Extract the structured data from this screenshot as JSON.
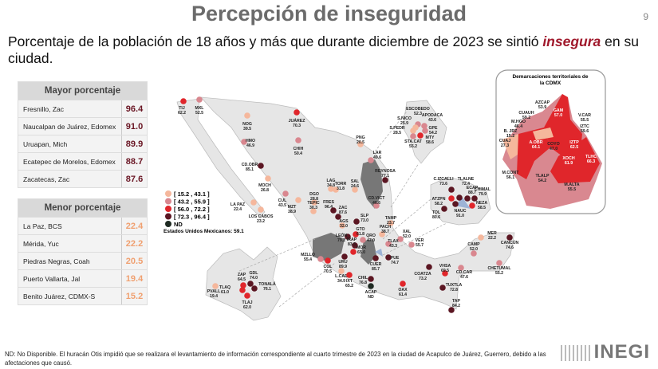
{
  "title": "Percepción de inseguridad",
  "page_number": "9",
  "subtitle": {
    "before": "Porcentaje de la población de 18 años y más que durante diciembre de 2023 se sintió ",
    "emphasis": "insegura",
    "after": " en su ciudad."
  },
  "mayor": {
    "title": "Mayor porcentaje",
    "rows": [
      {
        "name": "Fresnillo, Zac",
        "value": "96.4"
      },
      {
        "name": "Naucalpan de Juárez, Edomex",
        "value": "91.0"
      },
      {
        "name": "Uruapan, Mich",
        "value": "89.9"
      },
      {
        "name": "Ecatepec de Morelos, Edomex",
        "value": "88.7"
      },
      {
        "name": "Zacatecas, Zac",
        "value": "87.6"
      }
    ]
  },
  "menor": {
    "title": "Menor porcentaje",
    "rows": [
      {
        "name": "La Paz, BCS",
        "value": "22.4"
      },
      {
        "name": "Mérida, Yuc",
        "value": "22.2"
      },
      {
        "name": "Piedras Negras, Coah",
        "value": "20.5"
      },
      {
        "name": "Puerto Vallarta, Jal",
        "value": "19.4"
      },
      {
        "name": "Benito Juárez, CDMX-S",
        "value": "15.2"
      }
    ]
  },
  "legend": [
    {
      "label": "[ 15.2 , 43.1 ]",
      "color": "#f5b79c"
    },
    {
      "label": "[ 43.2 , 55.9 ]",
      "color": "#d9878f"
    },
    {
      "label": "[ 56.0 , 72.2 ]",
      "color": "#e0262b"
    },
    {
      "label": "[ 72.3 , 96.4 ]",
      "color": "#5b1622"
    },
    {
      "label": "ND",
      "color": "#1f2a22"
    }
  ],
  "national": "Estados Unidos Mexicanos:  59.1",
  "cities": [
    {
      "code": "TIJ",
      "value": "62.2",
      "c": 2
    },
    {
      "code": "MXL",
      "value": "52.5",
      "c": 1
    },
    {
      "code": "NOG",
      "value": "39.5",
      "c": 0
    },
    {
      "code": "JUÁREZ",
      "value": "70.3",
      "c": 2
    },
    {
      "code": "HMO",
      "value": "46.9",
      "c": 1
    },
    {
      "code": "CHIH",
      "value": "50.4",
      "c": 1
    },
    {
      "code": "CD.OBR",
      "value": "85.1",
      "c": 3
    },
    {
      "code": "MOCH",
      "value": "26.8",
      "c": 0
    },
    {
      "code": "CUL",
      "value": "43.5",
      "c": 1
    },
    {
      "code": "LA PAZ",
      "value": "22.4",
      "c": 0
    },
    {
      "code": "LOS CABOS",
      "value": "23.2",
      "c": 0
    },
    {
      "code": "MZT",
      "value": "38.9",
      "c": 0
    },
    {
      "code": "DGO",
      "value": "28.8",
      "c": 0
    },
    {
      "code": "LAG",
      "value": "34.8",
      "c": 0
    },
    {
      "code": "TORR",
      "value": "31.8",
      "c": 0
    },
    {
      "code": "SAL",
      "value": "24.6",
      "c": 0
    },
    {
      "code": "PNG",
      "value": "20.5",
      "c": 0
    },
    {
      "code": "LAR",
      "value": "49.6",
      "c": 1
    },
    {
      "code": "REYNOSA",
      "value": "77.1",
      "c": 3
    },
    {
      "code": "TEPIC",
      "value": "30.3",
      "c": 0
    },
    {
      "code": "FRES",
      "value": "96.4",
      "c": 3
    },
    {
      "code": "ZAC",
      "value": "87.6",
      "c": 3
    },
    {
      "code": "AGS",
      "value": "32.0",
      "c": 0
    },
    {
      "code": "SLP",
      "value": "73.0",
      "c": 3
    },
    {
      "code": "CD.VICT",
      "value": "46.6",
      "c": 1
    },
    {
      "code": "TAMP",
      "value": "23.7",
      "c": 0
    },
    {
      "code": "LEÓN",
      "value": "79.2",
      "c": 3
    },
    {
      "code": "GTO",
      "value": "61.8",
      "c": 2
    },
    {
      "code": "QRO",
      "value": "47.0",
      "c": 1
    },
    {
      "code": "IRAP",
      "value": "83.5",
      "c": 3
    },
    {
      "code": "PACH",
      "value": "38.7",
      "c": 0
    },
    {
      "code": "XAL",
      "value": "52.0",
      "c": 1
    },
    {
      "code": "MOR",
      "value": "65.0",
      "c": 2
    },
    {
      "code": "URU",
      "value": "89.9",
      "c": 3
    },
    {
      "code": "TLAX",
      "value": "43.3",
      "c": 1
    },
    {
      "code": "VER",
      "value": "55.7",
      "c": 1
    },
    {
      "code": "MZLLO",
      "value": "55.4",
      "c": 1
    },
    {
      "code": "COL",
      "value": "70.5",
      "c": 2
    },
    {
      "code": "CUER",
      "value": "85.7",
      "c": 3
    },
    {
      "code": "PUE",
      "value": "74.7",
      "c": 3
    },
    {
      "code": "L.CAR",
      "value": "34.9",
      "c": 0
    },
    {
      "code": "IXT",
      "value": "65.2",
      "c": 2
    },
    {
      "code": "CHIL",
      "value": "76.8",
      "c": 3
    },
    {
      "code": "ACAP",
      "value": "ND",
      "c": 4
    },
    {
      "code": "OAX",
      "value": "61.4",
      "c": 2
    },
    {
      "code": "COATZA",
      "value": "73.2",
      "c": 3
    },
    {
      "code": "VHSA",
      "value": "69.5",
      "c": 2
    },
    {
      "code": "TUXTLA",
      "value": "72.8",
      "c": 3
    },
    {
      "code": "TAP",
      "value": "84.2",
      "c": 3
    },
    {
      "code": "CD.CAR",
      "value": "47.6",
      "c": 1
    },
    {
      "code": "CAMP",
      "value": "52.0",
      "c": 1
    },
    {
      "code": "MER",
      "value": "22.2",
      "c": 0
    },
    {
      "code": "CANCÚN",
      "value": "74.6",
      "c": 3
    },
    {
      "code": "CHETUMAL",
      "value": "55.2",
      "c": 1
    },
    {
      "code": "ZAP",
      "value": "64.5",
      "c": 2
    },
    {
      "code": "GDL",
      "value": "74.0",
      "c": 3
    },
    {
      "code": "TONALÁ",
      "value": "76.1",
      "c": 3
    },
    {
      "code": "TLAQ",
      "value": "61.0",
      "c": 2
    },
    {
      "code": "TLAJ",
      "value": "62.0",
      "c": 2
    },
    {
      "code": "PVALL",
      "value": "19.4",
      "c": 0
    },
    {
      "code": "ESCOBEDO",
      "value": "52.3",
      "c": 1
    },
    {
      "code": "S.NICO",
      "value": "25.9",
      "c": 0
    },
    {
      "code": "APODACA",
      "value": "43.6",
      "c": 1
    },
    {
      "code": "S.PEDR",
      "value": "28.5",
      "c": 0
    },
    {
      "code": "GPE",
      "value": "54.2",
      "c": 1
    },
    {
      "code": "STA.CAT",
      "value": "55.2",
      "c": 1
    },
    {
      "code": "MTY",
      "value": "58.6",
      "c": 2
    },
    {
      "code": "C.IZCALLI",
      "value": "73.6",
      "c": 3
    },
    {
      "code": "ATZPN",
      "value": "58.2",
      "c": 2
    },
    {
      "code": "TLALNE",
      "value": "72.4",
      "c": 3
    },
    {
      "code": "ECAP",
      "value": "88.7",
      "c": 3
    },
    {
      "code": "CHIMAL",
      "value": "79.9",
      "c": 3
    },
    {
      "code": "NEZA",
      "value": "58.5",
      "c": 2
    },
    {
      "code": "NAUC",
      "value": "91.0",
      "c": 3
    },
    {
      "code": "TOL",
      "value": "80.6",
      "c": 3
    }
  ],
  "cdmx": {
    "title": "Demarcaciones territoriales de la CDMX",
    "districts": [
      {
        "code": "AZCAP",
        "value": "53.9",
        "c": 1
      },
      {
        "code": "CUAUH",
        "value": "59.2",
        "c": 2
      },
      {
        "code": "M.HGO",
        "value": "46.4",
        "c": 1
      },
      {
        "code": "B. JRZ",
        "value": "15.2",
        "c": 0
      },
      {
        "code": "CUAJ",
        "value": "27.3",
        "c": 0
      },
      {
        "code": "M.CONT",
        "value": "56.1",
        "c": 2
      },
      {
        "code": "GAM",
        "value": "57.0",
        "c": 2
      },
      {
        "code": "V.CAR",
        "value": "55.5",
        "c": 1
      },
      {
        "code": "IZTC",
        "value": "59.6",
        "c": 2
      },
      {
        "code": "A.OBR",
        "value": "64.1",
        "c": 2
      },
      {
        "code": "COYO",
        "value": "47.0",
        "c": 1
      },
      {
        "code": "IZTP",
        "value": "62.5",
        "c": 2
      },
      {
        "code": "TLHC",
        "value": "66.3",
        "c": 2
      },
      {
        "code": "XOCH",
        "value": "61.9",
        "c": 2
      },
      {
        "code": "TLALP",
        "value": "54.2",
        "c": 1
      },
      {
        "code": "M.ALTA",
        "value": "55.5",
        "c": 1
      }
    ]
  },
  "footnote": "ND: No Disponible. El huracán Otis impidió que se realizara el levantamiento de información correspondiente al cuarto trimestre de 2023 en la ciudad de Acapulco de Juárez, Guerrero, debido a las afectaciones que causó.",
  "logo": "INEGI"
}
